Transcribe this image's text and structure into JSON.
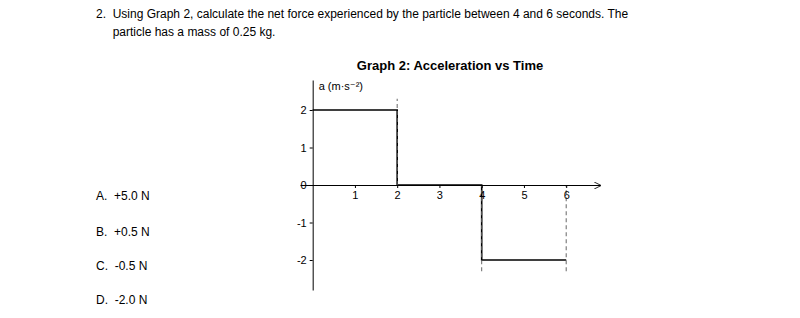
{
  "chart_data": {
    "type": "line",
    "title": "Graph 2: Acceleration vs Time",
    "ylabel": "a (m·s⁻²)",
    "annotations": [
      "2.  Using Graph 2, calculate the net force experienced by the particle between 4 and 6 seconds. The",
      "     particle has a mass of 0.25 kg.",
      "A.  +5.0 N",
      "B.  +0.5 N",
      "C.  -0.5 N",
      "D.  -2.0 N"
    ],
    "series": [
      {
        "x": [
          0,
          2,
          2,
          4,
          4,
          6
        ],
        "values": [
          2,
          2,
          0,
          0,
          -2,
          -2
        ],
        "color": "#000000",
        "line_style": "solid"
      },
      {
        "x": [
          2,
          2
        ],
        "values": [
          0,
          2.3
        ],
        "color": "#666666",
        "line_style": "dashed"
      },
      {
        "x": [
          4,
          4
        ],
        "values": [
          -2.3,
          0
        ],
        "color": "#666666",
        "line_style": "dashed"
      },
      {
        "x": [
          6,
          6
        ],
        "values": [
          -2.3,
          0
        ],
        "color": "#666666",
        "line_style": "dashed"
      }
    ],
    "xlim": [
      -0.3,
      6.8
    ],
    "ylim": [
      -2.8,
      2.8
    ],
    "xticks": [
      1,
      2,
      3,
      4,
      5,
      6
    ],
    "yticks": [
      -2,
      -1,
      0,
      1,
      2
    ],
    "grid": false
  }
}
